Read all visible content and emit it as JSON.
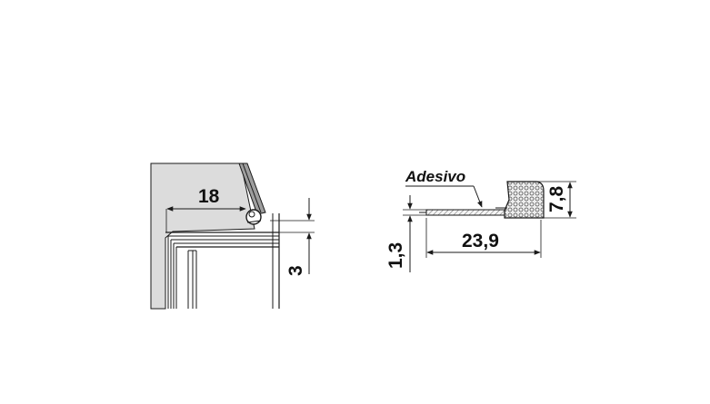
{
  "colors": {
    "panel_fill": "#dcdcdc",
    "line": "#1a1a1a",
    "background": "#ffffff",
    "foam_fill": "#e8e8e8"
  },
  "left_view": {
    "dim_gap_width": "18",
    "dim_height": "3"
  },
  "right_view": {
    "label_adhesive": "Adesivo",
    "dim_length": "23,9",
    "dim_thickness": "1,3",
    "dim_foam_height": "7,8"
  }
}
